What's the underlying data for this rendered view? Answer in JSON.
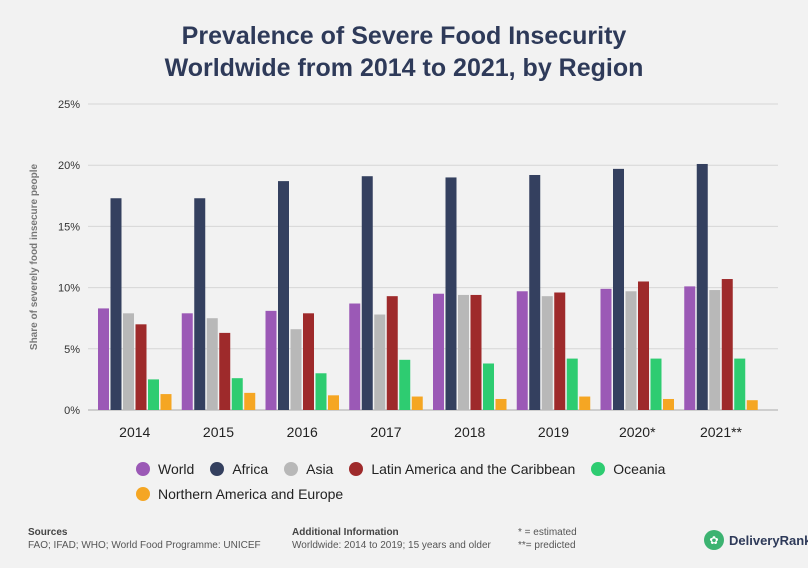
{
  "chart_data": {
    "type": "bar",
    "title_line1": "Prevalence of Severe Food Insecurity",
    "title_line2": "Worldwide from 2014 to 2021, by Region",
    "ylabel": "Share of severely food insecure people",
    "ylim": [
      0,
      25
    ],
    "yticks": [
      "0%",
      "5%",
      "10%",
      "15%",
      "20%",
      "25%"
    ],
    "ytick_values": [
      0,
      5,
      10,
      15,
      20,
      25
    ],
    "categories": [
      "2014",
      "2015",
      "2016",
      "2017",
      "2018",
      "2019",
      "2020*",
      "2021**"
    ],
    "series": [
      {
        "name": "World",
        "color": "#9b59b6",
        "values": [
          8.3,
          7.9,
          8.1,
          8.7,
          9.5,
          9.7,
          9.9,
          10.1
        ]
      },
      {
        "name": "Africa",
        "color": "#34405f",
        "values": [
          17.3,
          17.3,
          18.7,
          19.1,
          19.0,
          19.2,
          19.7,
          20.1
        ]
      },
      {
        "name": "Asia",
        "color": "#b8b8b8",
        "values": [
          7.9,
          7.5,
          6.6,
          7.8,
          9.4,
          9.3,
          9.7,
          9.8
        ]
      },
      {
        "name": "Latin America and the Caribbean",
        "color": "#9e2a2b",
        "values": [
          7.0,
          6.3,
          7.9,
          9.3,
          9.4,
          9.6,
          10.5,
          10.7
        ]
      },
      {
        "name": "Oceania",
        "color": "#2ecc71",
        "values": [
          2.5,
          2.6,
          3.0,
          4.1,
          3.8,
          4.2,
          4.2,
          4.2
        ]
      },
      {
        "name": "Northern America and Europe",
        "color": "#f5a623",
        "values": [
          1.3,
          1.4,
          1.2,
          1.1,
          0.9,
          1.1,
          0.9,
          0.8
        ]
      }
    ],
    "grid": true,
    "legend": "bottom"
  },
  "footer": {
    "sources_heading": "Sources",
    "sources_text": "FAO; IFAD; WHO; World Food Programme: UNICEF",
    "info_heading": "Additional Information",
    "info_text": "Worldwide: 2014 to 2019; 15 years and older",
    "note_estimated": "* = estimated",
    "note_predicted": "**= predicted"
  },
  "brand": {
    "name": "DeliveryRank",
    "logo_color": "#3cb371"
  }
}
